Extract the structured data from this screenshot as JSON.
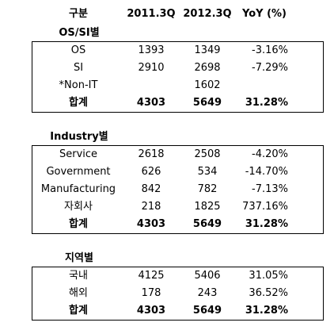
{
  "header": [
    "구분",
    "2011.3Q",
    "2012.3Q",
    "YoY (%)"
  ],
  "sections": [
    {
      "title": "OS/SI별",
      "rows": [
        [
          "OS",
          "1393",
          "1349",
          "-3.16%"
        ],
        [
          "SI",
          "2910",
          "2698",
          "-7.29%"
        ],
        [
          "*Non-IT",
          null,
          "1602",
          null
        ],
        [
          "합계",
          "4303",
          "5649",
          "31.28%"
        ]
      ]
    },
    {
      "title": "Industry별",
      "rows": [
        [
          "Service",
          "2618",
          "2508",
          "-4.20%"
        ],
        [
          "Government",
          "626",
          "534",
          "-14.70%"
        ],
        [
          "Manufacturing",
          "842",
          "782",
          "-7.13%"
        ],
        [
          "자회사",
          "218",
          "1825",
          "737.16%"
        ],
        [
          "합계",
          "4303",
          "5649",
          "31.28%"
        ]
      ]
    },
    {
      "title": "지역별",
      "rows": [
        [
          "국내",
          "4125",
          "5406",
          "31.05%"
        ],
        [
          "해외",
          "178",
          "243",
          "36.52%"
        ],
        [
          "합계",
          "4303",
          "5649",
          "31.28%"
        ]
      ]
    }
  ]
}
